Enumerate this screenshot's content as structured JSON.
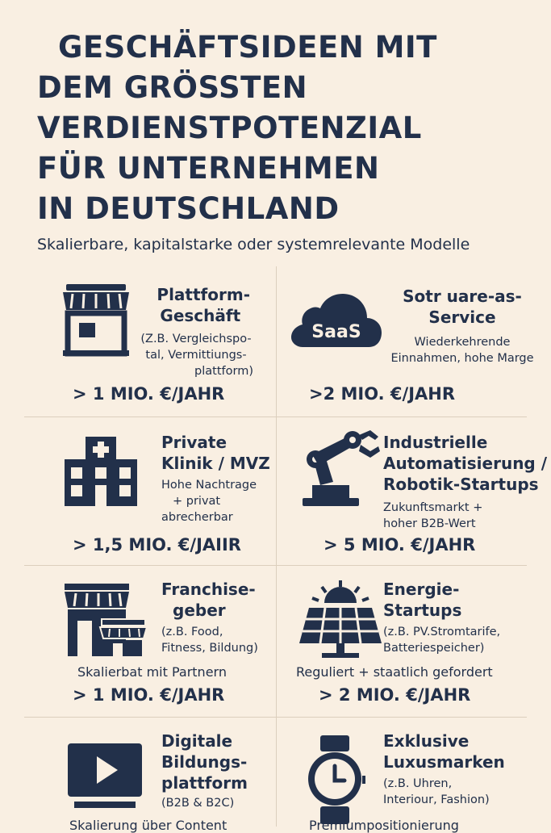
{
  "title_lines": [
    "GESCHÄFTSIDEEN MIT",
    "DEM GRÖSSTEN",
    "VERDIENSTPOTENZIAL",
    "FÜR UNTERNEHMEN",
    "IN DEUTSCHLAND"
  ],
  "subtitle": "Skalierbare, kapitalstarke oder systemrelevante Modelle",
  "cards": [
    {
      "icon": "storefront-icon",
      "title_lines": [
        "Plattform-",
        "Geschäft"
      ],
      "desc_lines": [
        "(Z.B. Vergleichspo-",
        "tal, Vermittiungs-",
        "plattform)"
      ],
      "amount": "> 1 MIO. €/JAHR"
    },
    {
      "icon": "saas-cloud-icon",
      "icon_label": "SaaS",
      "title_lines": [
        "Sotr uare-as-",
        "Service"
      ],
      "desc_lines": [
        "Wiederkehrende",
        "Einnahmen, hohe Marge"
      ],
      "amount": ">2 MIO. €/JAHR"
    },
    {
      "icon": "hospital-icon",
      "title_lines": [
        "Private",
        "Klinik / MVZ"
      ],
      "desc_lines": [
        "Hohe Nachtrage",
        "+ privat",
        "abrecherbar"
      ],
      "amount": "> 1,5 MIO. €/JAIIR"
    },
    {
      "icon": "robot-arm-icon",
      "title_lines": [
        "Industrielle",
        "Automatisierung /",
        "Robotik-Startups"
      ],
      "desc_lines": [
        "Zukunftsmarkt +",
        "hoher B2B-Wert"
      ],
      "amount": "> 5 MIO. €/JAHR"
    },
    {
      "icon": "franchise-stores-icon",
      "title_lines": [
        "Franchise-",
        "geber"
      ],
      "desc_lines": [
        "(z.B. Food,",
        "Fitness, Bildung)"
      ],
      "note": "Skalierbat mit Partnern",
      "amount": "> 1 MIO. €/JAHR"
    },
    {
      "icon": "solar-panel-icon",
      "title_lines": [
        "Energie-",
        "Startups"
      ],
      "desc_lines": [
        "(z.B. PV.Stromtarife,",
        "Batteriespeicher)"
      ],
      "note": "Reguliert + staatlich gefordert",
      "amount": "> 2 MIO. €/JAHR"
    },
    {
      "icon": "video-play-icon",
      "title_lines": [
        "Digitale",
        "Bildungs-",
        "plattform"
      ],
      "desc_lines": [
        "(B2B & B2C)"
      ],
      "note": "Skalierung über Content"
    },
    {
      "icon": "wristwatch-icon",
      "title_lines": [
        "Exklusive",
        "Luxusmarken"
      ],
      "desc_lines": [
        "(z.B. Uhren,",
        "Interiour, Fashion)"
      ],
      "note": "Premiumpositionierung"
    }
  ]
}
